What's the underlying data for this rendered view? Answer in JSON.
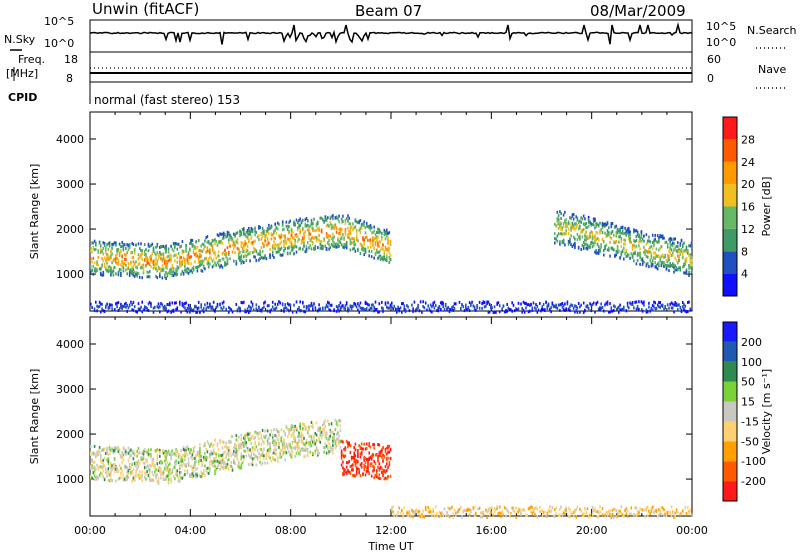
{
  "header": {
    "station": "Unwin (fitACF)",
    "beam": "Beam 07",
    "date": "08/Mar/2009"
  },
  "nsky_panel": {
    "left_label": "N.Sky",
    "left_ticks": [
      "10^5",
      "10^0"
    ],
    "right_ticks": [
      "10^5",
      "10^0"
    ],
    "right_label": "N.Search"
  },
  "freq_panel": {
    "left_label_top": "Freq.",
    "left_label_unit": "[MHz]",
    "left_ticks": [
      "18",
      "8"
    ],
    "right_ticks": [
      "60",
      "0"
    ],
    "right_label": "Nave"
  },
  "cpid_panel": {
    "label": "CPID",
    "text": "normal (fast stereo) 153"
  },
  "colors": {
    "power_scale": [
      "#1010ff",
      "#2050c0",
      "#3f9a66",
      "#66b866",
      "#f0c020",
      "#ff9a00",
      "#ff5a00",
      "#ff1a1a"
    ],
    "velocity_scale": [
      "#1a1aff",
      "#1f5ab0",
      "#2e8a4e",
      "#7ad23a",
      "#c8c8c0",
      "#ffd070",
      "#ffa000",
      "#ff5a00",
      "#ff1a1a"
    ]
  },
  "chart_data": [
    {
      "type": "heatmap",
      "title": "",
      "ylabel": "Slant Range [km]",
      "xlabel": "",
      "ylim": [
        180,
        4600
      ],
      "xlim": [
        0,
        24
      ],
      "yticks": [
        1000,
        2000,
        3000,
        4000
      ],
      "colorbar": {
        "label": "Power [dB]",
        "ticks": [
          "28",
          "24",
          "20",
          "16",
          "12",
          "8",
          "4"
        ],
        "range": [
          0,
          32
        ]
      },
      "features": [
        {
          "desc": "main echo band",
          "x": [
            0,
            3,
            6,
            8,
            10,
            12
          ],
          "y": [
            1400,
            1300,
            1650,
            1850,
            2000,
            1600
          ],
          "power_peak": 22
        },
        {
          "desc": "late echo band",
          "x": [
            18.5,
            20,
            22,
            24
          ],
          "y": [
            2100,
            1900,
            1600,
            1350
          ],
          "power_peak": 18
        },
        {
          "desc": "near-range clutter",
          "x": [
            0,
            24
          ],
          "y": [
            300,
            300
          ],
          "power_peak": 6
        }
      ]
    },
    {
      "type": "heatmap",
      "title": "",
      "ylabel": "Slant Range [km]",
      "xlabel": "Time UT",
      "ylim": [
        180,
        4600
      ],
      "xlim": [
        0,
        24
      ],
      "yticks": [
        1000,
        2000,
        3000,
        4000
      ],
      "xticks": [
        "00:00",
        "04:00",
        "08:00",
        "12:00",
        "16:00",
        "20:00",
        "00:00"
      ],
      "colorbar": {
        "label": "Velocity [m s⁻¹]",
        "ticks": [
          "200",
          "100",
          "50",
          "15",
          "-15",
          "-50",
          "-100",
          "-200"
        ],
        "range": [
          -250,
          250
        ]
      },
      "features": [
        {
          "desc": "ground scatter band",
          "x": [
            0,
            3,
            6,
            8,
            10
          ],
          "y": [
            1400,
            1300,
            1650,
            1850,
            2000
          ],
          "velocity": 0
        },
        {
          "desc": "negative velocity patch",
          "x": [
            10,
            11,
            12
          ],
          "y": [
            1500,
            1450,
            1400
          ],
          "velocity": -180
        },
        {
          "desc": "low range slow flow",
          "x": [
            12,
            24
          ],
          "y": [
            300,
            300
          ],
          "velocity": -40
        }
      ]
    }
  ]
}
